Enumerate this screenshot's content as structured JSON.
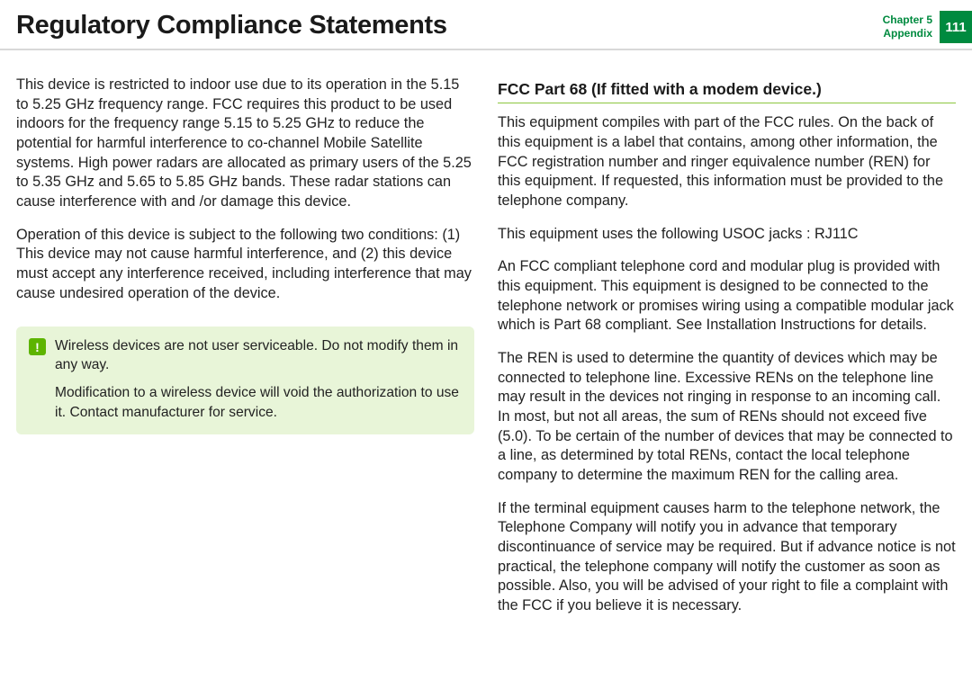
{
  "header": {
    "title": "Regulatory Compliance Statements",
    "chapter_line1": "Chapter 5",
    "chapter_line2": "Appendix",
    "page_number": "111"
  },
  "colors": {
    "accent_green": "#008a3f",
    "note_bg": "#e8f5d8",
    "note_icon_bg": "#5db400",
    "rule_green": "#8cc63f",
    "gray_rule": "#d8d8d8"
  },
  "left_column": {
    "p1": "This device is restricted to indoor use due to its operation in the 5.15 to 5.25 GHz frequency range. FCC requires this product to be used indoors for the frequency range 5.15 to 5.25 GHz to reduce the potential for harmful interference to co-channel Mobile Satellite systems. High power radars are allocated as primary users of the 5.25 to 5.35 GHz and 5.65 to 5.85 GHz bands. These radar stations can cause interference with and /or damage this device.",
    "p2": "Operation of this device is subject to the following two conditions: (1) This device may not cause harmful interference, and (2) this device must accept any interference received, including interference that may cause undesired operation of the device.",
    "note_icon": "!",
    "note_p1": "Wireless devices are not user serviceable. Do not modify them in any way.",
    "note_p2": "Modification to a wireless device will void the authorization to use it. Contact manufacturer for service."
  },
  "right_column": {
    "heading": "FCC Part 68 (If fitted with a modem device.)",
    "p1": "This equipment compiles with part of the FCC rules. On the back of this equipment is a label that contains, among other information, the FCC registration number and ringer equivalence number (REN) for this equipment. If requested, this information must be provided to the telephone company.",
    "p2": "This equipment uses the following USOC jacks : RJ11C",
    "p3": "An FCC compliant telephone cord and modular plug is provided with this equipment. This equipment is designed to be connected to the telephone network or promises wiring using a compatible modular jack which is Part 68 compliant. See Installation Instructions for details.",
    "p4": "The REN is used to determine the quantity of devices which may be connected to telephone line. Excessive RENs on the telephone line may result in the devices not ringing in response to an incoming call. In most, but not all areas, the sum of RENs should not exceed five (5.0). To be certain of the number of devices that may be connected to a line, as determined by total RENs, contact the local telephone company to determine the maximum REN for the calling area.",
    "p5": "If the terminal equipment causes harm to the telephone network, the Telephone Company will notify you in advance that temporary discontinuance of service may be required. But if advance notice is not practical, the telephone company will notify the customer as soon as possible. Also, you will be advised of your right to file a complaint with the FCC if you believe it is necessary."
  }
}
